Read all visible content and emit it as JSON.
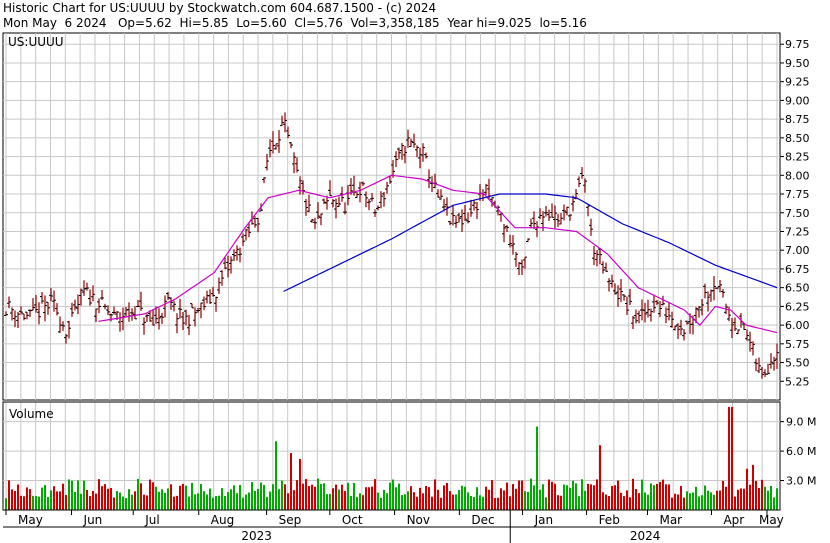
{
  "header": {
    "line1": "Historic Chart for US:UUUU by Stockwatch.com 604.687.1500 - (c) 2024",
    "line2": "Mon May  6 2024   Op=5.62  Hi=5.85  Lo=5.60  Cl=5.76  Vol=3,358,185  Year hi=9.025  lo=5.16"
  },
  "chart_data": [
    {
      "type": "candlestick",
      "title": "US:UUUU",
      "ylim": [
        5.0,
        9.9
      ],
      "yticks": [
        "9.75",
        "9.50",
        "9.25",
        "9.00",
        "8.75",
        "8.50",
        "8.25",
        "8.00",
        "7.75",
        "7.50",
        "7.25",
        "7.00",
        "6.75",
        "6.50",
        "6.25",
        "6.00",
        "5.75",
        "5.50",
        "5.25"
      ],
      "grid": true,
      "colors": {
        "bar": "#8b0000",
        "ma_short": "#cc00cc",
        "ma_long": "#0000cc",
        "grid": "#c8c8c8"
      },
      "x_months": [
        "May",
        "Jun",
        "Jul",
        "Aug",
        "Sep",
        "Oct",
        "Nov",
        "Dec",
        "Jan",
        "Feb",
        "Mar",
        "Apr",
        "May"
      ],
      "x_years": [
        "2023",
        "2024"
      ],
      "price_path": [
        [
          0,
          6.25
        ],
        [
          3,
          6.1
        ],
        [
          6,
          6.3
        ],
        [
          8,
          5.9
        ],
        [
          10,
          6.45
        ],
        [
          12,
          6.3
        ],
        [
          14,
          6.1
        ],
        [
          17,
          6.2
        ],
        [
          19,
          6.0
        ],
        [
          21,
          6.3
        ],
        [
          23,
          6.05
        ],
        [
          25,
          6.2
        ],
        [
          27,
          6.4
        ],
        [
          29,
          6.8
        ],
        [
          31,
          7.15
        ],
        [
          33,
          7.5
        ],
        [
          34,
          8.3
        ],
        [
          36,
          8.7
        ],
        [
          38,
          7.9
        ],
        [
          40,
          7.3
        ],
        [
          42,
          7.7
        ],
        [
          44,
          7.6
        ],
        [
          46,
          7.85
        ],
        [
          48,
          7.5
        ],
        [
          50,
          8.0
        ],
        [
          52,
          8.45
        ],
        [
          54,
          8.3
        ],
        [
          56,
          7.7
        ],
        [
          58,
          7.35
        ],
        [
          60,
          7.45
        ],
        [
          62,
          7.8
        ],
        [
          64,
          7.5
        ],
        [
          66,
          7.0
        ],
        [
          67,
          6.65
        ],
        [
          68,
          7.3
        ],
        [
          70,
          7.55
        ],
        [
          72,
          7.4
        ],
        [
          74,
          7.7
        ],
        [
          75,
          8.05
        ],
        [
          76,
          7.1
        ],
        [
          78,
          6.6
        ],
        [
          80,
          6.35
        ],
        [
          82,
          6.05
        ],
        [
          84,
          6.3
        ],
        [
          86,
          6.15
        ],
        [
          88,
          5.95
        ],
        [
          90,
          6.3
        ],
        [
          92,
          6.6
        ],
        [
          94,
          6.1
        ],
        [
          96,
          5.9
        ],
        [
          98,
          5.3
        ],
        [
          100,
          5.7
        ]
      ],
      "moving_average_short": [
        [
          12,
          6.05
        ],
        [
          18,
          6.15
        ],
        [
          22,
          6.35
        ],
        [
          27,
          6.7
        ],
        [
          31,
          7.3
        ],
        [
          34,
          7.7
        ],
        [
          38,
          7.8
        ],
        [
          42,
          7.7
        ],
        [
          46,
          7.8
        ],
        [
          50,
          8.0
        ],
        [
          54,
          7.95
        ],
        [
          58,
          7.8
        ],
        [
          62,
          7.75
        ],
        [
          66,
          7.3
        ],
        [
          70,
          7.3
        ],
        [
          74,
          7.25
        ],
        [
          78,
          6.95
        ],
        [
          82,
          6.5
        ],
        [
          86,
          6.3
        ],
        [
          88,
          6.2
        ],
        [
          90,
          6.0
        ],
        [
          92,
          6.25
        ],
        [
          94,
          6.2
        ],
        [
          96,
          6.0
        ],
        [
          100,
          5.9
        ]
      ],
      "moving_average_long": [
        [
          36,
          6.45
        ],
        [
          42,
          6.75
        ],
        [
          50,
          7.15
        ],
        [
          58,
          7.6
        ],
        [
          64,
          7.75
        ],
        [
          70,
          7.75
        ],
        [
          74,
          7.7
        ],
        [
          80,
          7.35
        ],
        [
          86,
          7.1
        ],
        [
          92,
          6.8
        ],
        [
          100,
          6.5
        ]
      ]
    },
    {
      "type": "bar",
      "title": "Volume",
      "ylim": [
        0,
        11000000
      ],
      "yticks": [
        "9.0 M",
        "6.0 M",
        "3.0 M"
      ],
      "colors": {
        "up": "#00aa00",
        "down": "#cc0000"
      },
      "spikes": [
        [
          35,
          7.0
        ],
        [
          37,
          5.8
        ],
        [
          38,
          5.2
        ],
        [
          69,
          8.5
        ],
        [
          77,
          6.6
        ],
        [
          94,
          10.5
        ],
        [
          96,
          4.2
        ],
        [
          97,
          4.6
        ]
      ]
    }
  ]
}
